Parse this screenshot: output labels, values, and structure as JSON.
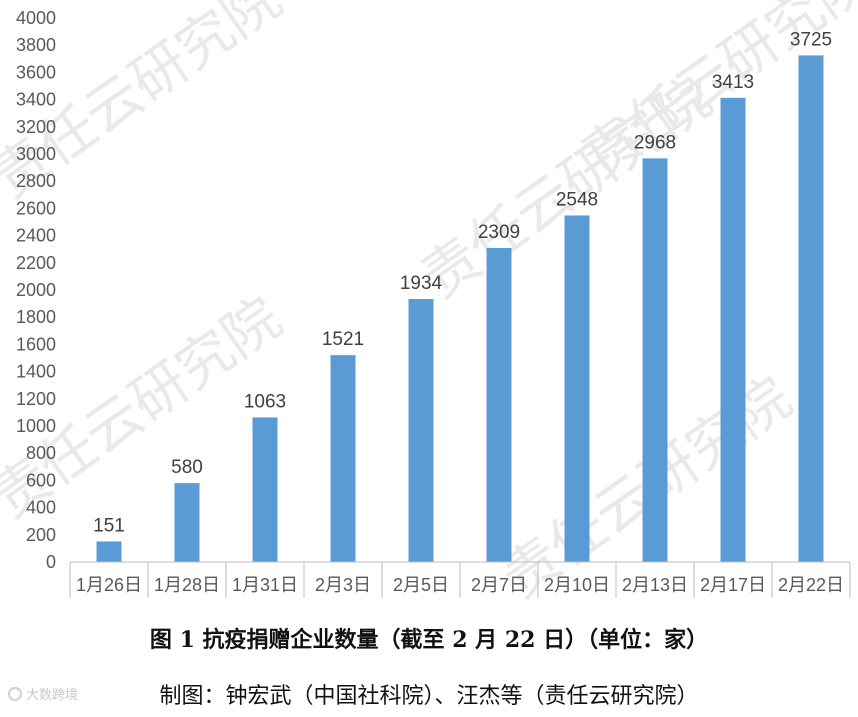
{
  "chart_data": {
    "type": "bar",
    "categories": [
      "1月26日",
      "1月28日",
      "1月31日",
      "2月3日",
      "2月5日",
      "2月7日",
      "2月10日",
      "2月13日",
      "2月17日",
      "2月22日"
    ],
    "values": [
      151,
      580,
      1063,
      1521,
      1934,
      2309,
      2548,
      2968,
      3413,
      3725
    ],
    "ylim": [
      0,
      4000
    ],
    "ytick_step": 200,
    "bar_color": "#5b9bd5",
    "grid": false,
    "legend": "none"
  },
  "caption": "图 1 抗疫捐赠企业数量（截至 2 月 22 日）（单位：家）",
  "credit": "制图：钟宏武（中国社科院）、汪杰等（责任云研究院）",
  "watermark": "责任云研究院",
  "badge": "大数跨境"
}
